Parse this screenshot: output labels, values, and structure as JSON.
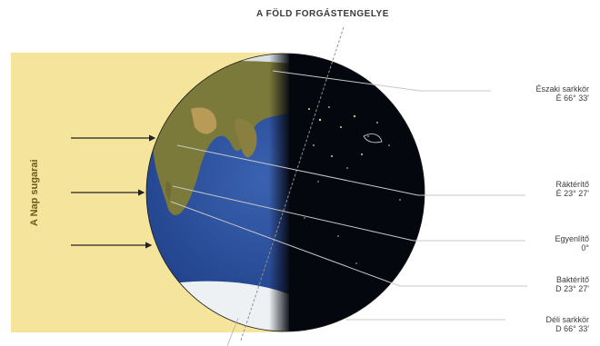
{
  "title": "A FÖLD FORGÁSTENGELYE",
  "sun_rays_label": "A Nap sugarai",
  "latitude_labels": [
    {
      "name": "Északi sarkkör",
      "value": "É 66° 33'"
    },
    {
      "name": "Ráktérítő",
      "value": "É 23° 27'"
    },
    {
      "name": "Egyenlítő",
      "value": "0°"
    },
    {
      "name": "Baktérítő",
      "value": "D 23° 27'"
    },
    {
      "name": "Déli sarkkör",
      "value": "D 66° 33'"
    }
  ],
  "colors": {
    "sunlight": "#f5e59c",
    "ocean": "#24458f",
    "night": "#05070f",
    "land": "#7c7a3a"
  }
}
